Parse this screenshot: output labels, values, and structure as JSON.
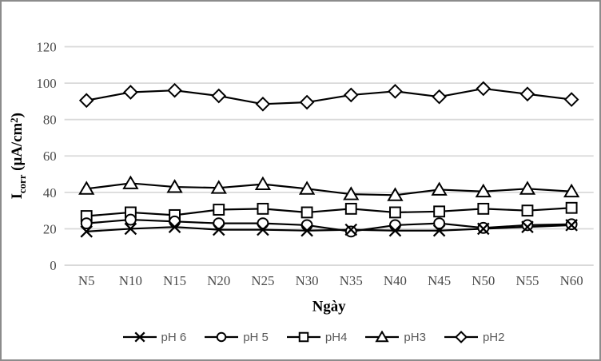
{
  "chart_data": {
    "type": "line",
    "title": "",
    "xlabel": "Ngày",
    "ylabel": "Icorr (µA/cm2)",
    "ylabel_parts": [
      {
        "t": "I",
        "pos": "base"
      },
      {
        "t": "corr",
        "pos": "sub"
      },
      {
        "t": " (µA/cm",
        "pos": "base"
      },
      {
        "t": "2",
        "pos": "sup"
      },
      {
        "t": ")",
        "pos": "base"
      }
    ],
    "categories": [
      "N5",
      "N10",
      "N15",
      "N20",
      "N25",
      "N30",
      "N35",
      "N40",
      "N45",
      "N50",
      "N55",
      "N60"
    ],
    "series": [
      {
        "name": "pH 6",
        "marker": "x",
        "values": [
          18.5,
          20,
          21,
          19.5,
          19.5,
          19,
          19.5,
          19,
          19,
          20,
          21,
          22
        ]
      },
      {
        "name": "pH 5",
        "marker": "circle",
        "values": [
          23,
          25,
          24,
          23,
          23,
          22,
          18.5,
          22,
          23,
          20.5,
          22,
          22.5
        ]
      },
      {
        "name": "pH4",
        "marker": "square",
        "values": [
          27,
          29,
          27.5,
          30.5,
          31,
          29,
          31,
          29,
          29.5,
          31,
          30,
          31.5
        ]
      },
      {
        "name": "pH3",
        "marker": "triangle",
        "values": [
          42,
          45,
          43,
          42.5,
          44.5,
          42,
          39,
          38.5,
          41.5,
          40.5,
          42,
          40.5
        ]
      },
      {
        "name": "pH2",
        "marker": "diamond",
        "values": [
          90.5,
          95,
          96,
          93,
          88.5,
          89.5,
          93.5,
          95.5,
          92.5,
          97,
          94,
          91
        ]
      }
    ],
    "ylim": [
      0,
      120
    ],
    "yticks": [
      0,
      20,
      40,
      60,
      80,
      100,
      120
    ],
    "grid": true,
    "legend_position": "bottom",
    "colors": {
      "line": "#000000",
      "marker_fill": "#ffffff",
      "grid": "#d9d9d9",
      "tick_label": "#4a4a4a",
      "axis_title": "#000000",
      "legend_text": "#595959",
      "frame_border": "#8c8c8c"
    }
  }
}
